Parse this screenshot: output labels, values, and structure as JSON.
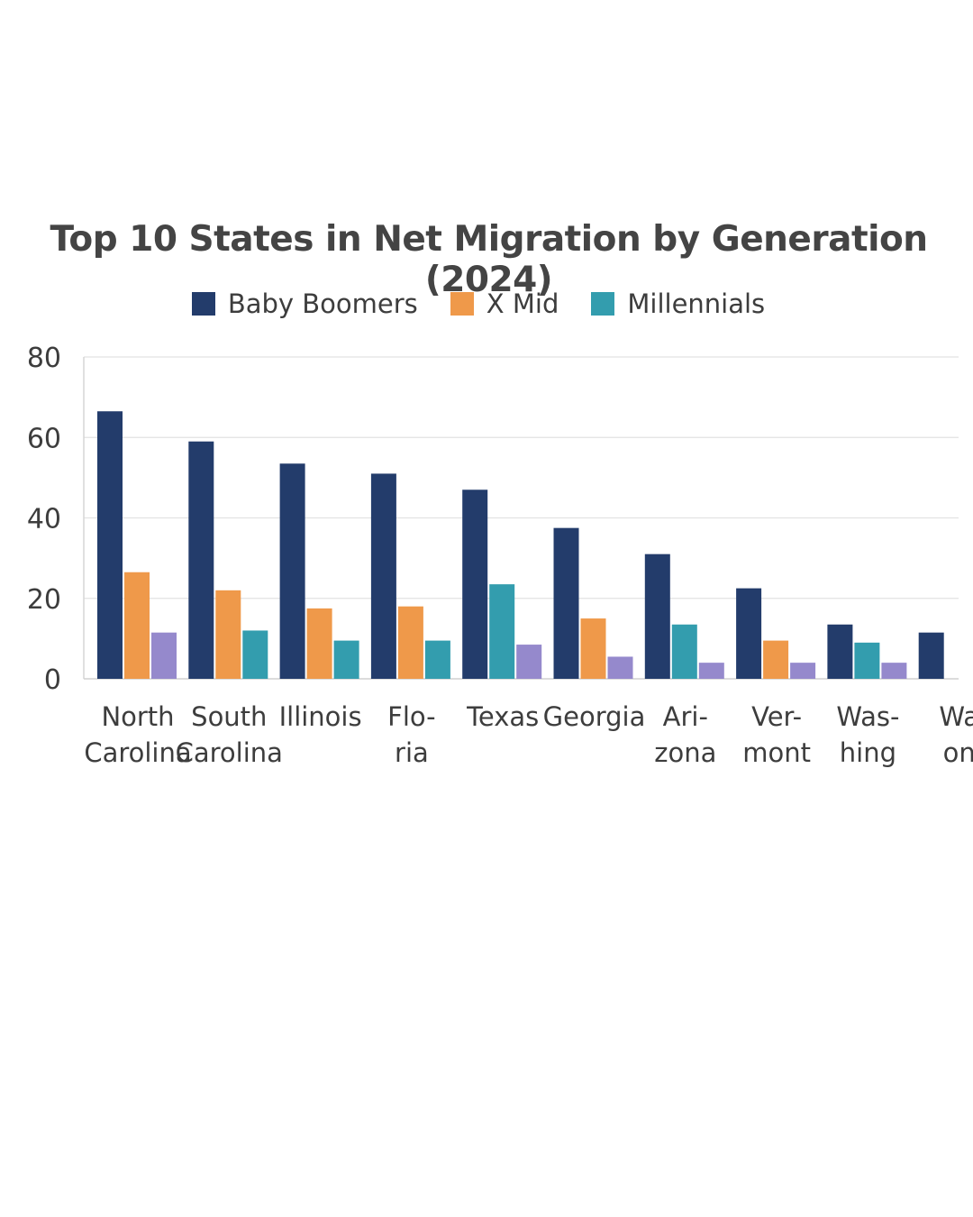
{
  "chart_data": {
    "type": "bar",
    "title": "Top 10 States in Net Migration by Generation (2024)",
    "xlabel": "",
    "ylabel": "",
    "ylim": [
      0,
      80
    ],
    "yticks": [
      "0",
      "20",
      "40",
      "60",
      "80"
    ],
    "grid": true,
    "legend_position": "top-center",
    "legend": [
      {
        "name": "Baby Boomers",
        "color": "#233c6b"
      },
      {
        "name": "X Mid",
        "color": "#ef994a"
      },
      {
        "name": "Millennials",
        "color": "#339dae"
      }
    ],
    "categories": [
      {
        "lines": [
          "North",
          "Carolina"
        ],
        "bars": [
          {
            "value": 66.5,
            "color": "#233c6b"
          },
          {
            "value": 26.5,
            "color": "#ef994a"
          },
          {
            "value": 11.5,
            "color": "#9589cc"
          }
        ]
      },
      {
        "lines": [
          "South",
          "Carolina"
        ],
        "bars": [
          {
            "value": 59,
            "color": "#233c6b"
          },
          {
            "value": 22,
            "color": "#ef994a"
          },
          {
            "value": 12,
            "color": "#339dae"
          }
        ]
      },
      {
        "lines": [
          "Illinois"
        ],
        "bars": [
          {
            "value": 53.5,
            "color": "#233c6b"
          },
          {
            "value": 17.5,
            "color": "#ef994a"
          },
          {
            "value": 9.5,
            "color": "#339dae"
          }
        ]
      },
      {
        "lines": [
          "Flo-",
          "ria"
        ],
        "bars": [
          {
            "value": 51,
            "color": "#233c6b"
          },
          {
            "value": 18,
            "color": "#ef994a"
          },
          {
            "value": 9.5,
            "color": "#339dae"
          }
        ]
      },
      {
        "lines": [
          "Texas"
        ],
        "bars": [
          {
            "value": 47,
            "color": "#233c6b"
          },
          {
            "value": 23.5,
            "color": "#339dae"
          },
          {
            "value": 8.5,
            "color": "#9589cc"
          }
        ]
      },
      {
        "lines": [
          "Georgia"
        ],
        "bars": [
          {
            "value": 37.5,
            "color": "#233c6b"
          },
          {
            "value": 15,
            "color": "#ef994a"
          },
          {
            "value": 5.5,
            "color": "#9589cc"
          }
        ]
      },
      {
        "lines": [
          "Ari-",
          "zona"
        ],
        "bars": [
          {
            "value": 31,
            "color": "#233c6b"
          },
          {
            "value": 13.5,
            "color": "#339dae"
          },
          {
            "value": 4,
            "color": "#9589cc"
          }
        ]
      },
      {
        "lines": [
          "Ver-",
          "mont"
        ],
        "bars": [
          {
            "value": 22.5,
            "color": "#233c6b"
          },
          {
            "value": 9.5,
            "color": "#ef994a"
          },
          {
            "value": 4,
            "color": "#9589cc"
          }
        ]
      },
      {
        "lines": [
          "Was-",
          "hing"
        ],
        "bars": [
          {
            "value": 13.5,
            "color": "#233c6b"
          },
          {
            "value": 9,
            "color": "#339dae"
          },
          {
            "value": 4,
            "color": "#9589cc"
          }
        ]
      },
      {
        "lines": [
          "Wa",
          "on"
        ],
        "bars": [
          {
            "value": 11.5,
            "color": "#233c6b"
          }
        ]
      }
    ]
  }
}
